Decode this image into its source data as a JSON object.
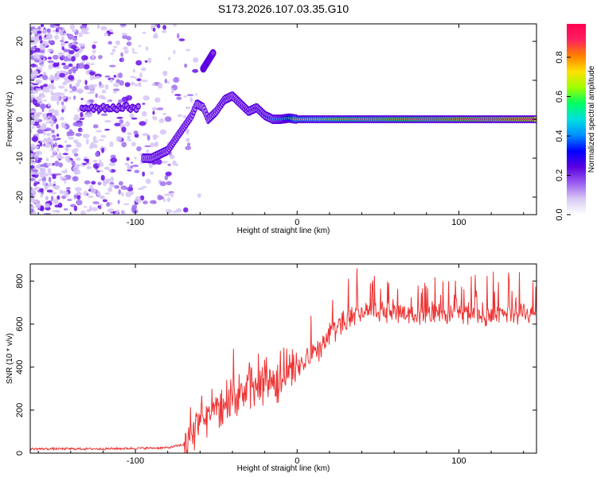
{
  "title": "S173.2026.107.03.35.G10",
  "chart_data": [
    {
      "type": "heatmap",
      "name": "spectrogram",
      "xlabel": "Height of straight line (km)",
      "ylabel": "Frequency (Hz)",
      "xlim": [
        -165,
        148
      ],
      "ylim": [
        -24.5,
        24.5
      ],
      "xticks": [
        -100,
        0,
        100
      ],
      "yticks": [
        -20,
        -10,
        0,
        10,
        20
      ],
      "colorbar": {
        "label": "Normalized spectral amplitude",
        "range": [
          0,
          0.97
        ],
        "ticks": [
          0.0,
          0.2,
          0.4,
          0.6,
          0.8
        ],
        "tick_labels": [
          "0.0",
          "0.2",
          "0.4",
          "0.6",
          "0.8"
        ],
        "colormap": [
          "#ffffff",
          "#d8c8f4",
          "#9a5cf0",
          "#5a00e0",
          "#0000ff",
          "#0090ff",
          "#00e0e0",
          "#00ff60",
          "#a0ff00",
          "#ffe000",
          "#ff8000",
          "#ff2060",
          "#ff0050"
        ]
      },
      "ridge": {
        "x": [
          -95,
          -90,
          -85,
          -80,
          -75,
          -70,
          -65,
          -62,
          -58,
          -55,
          -50,
          -45,
          -40,
          -35,
          -30,
          -25,
          -20,
          -15,
          -10,
          -5,
          0,
          20,
          50,
          100,
          148
        ],
        "y": [
          -10,
          -10,
          -9,
          -8,
          -5,
          -2,
          1,
          4,
          3,
          0,
          2,
          5,
          6,
          4,
          2,
          3,
          1,
          0,
          0,
          0.3,
          0,
          0,
          0,
          0,
          0
        ],
        "amplitude": [
          0.15,
          0.2,
          0.25,
          0.2,
          0.2,
          0.2,
          0.2,
          0.15,
          0.15,
          0.18,
          0.2,
          0.25,
          0.2,
          0.22,
          0.25,
          0.3,
          0.25,
          0.4,
          0.45,
          0.55,
          0.7,
          0.75,
          0.8,
          0.85,
          0.9
        ]
      },
      "side_band": {
        "x_start": -133,
        "x_end": -97,
        "frequency": 3,
        "amplitude": 0.15
      },
      "streak": {
        "x": [
          -58,
          -52
        ],
        "y": [
          13,
          17
        ],
        "amplitude": 0.2
      }
    },
    {
      "type": "line",
      "name": "snr",
      "xlabel": "Height of straight line (km)",
      "ylabel": "SNR (10 * v/v)",
      "xlim": [
        -165,
        148
      ],
      "ylim": [
        0,
        880
      ],
      "xticks": [
        -100,
        0,
        100
      ],
      "yticks": [
        0,
        200,
        400,
        600,
        800
      ],
      "color": "#ee3333",
      "series": [
        {
          "name": "SNR",
          "x": [
            -165,
            -120,
            -80,
            -70,
            -60,
            -50,
            -40,
            -30,
            -20,
            -10,
            0,
            10,
            20,
            30,
            40,
            60,
            80,
            100,
            120,
            148
          ],
          "y": [
            20,
            20,
            25,
            40,
            150,
            200,
            230,
            300,
            330,
            340,
            400,
            450,
            540,
            620,
            660,
            650,
            640,
            650,
            640,
            660
          ]
        }
      ]
    }
  ]
}
